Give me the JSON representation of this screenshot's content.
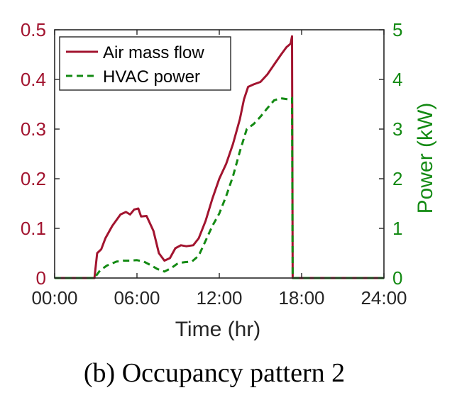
{
  "chart_data": {
    "type": "line",
    "xlabel": "Time (hr)",
    "ylabel_left": "",
    "ylabel_right": "Power (kW)",
    "caption": "(b) Occupancy pattern 2",
    "x_ticks": [
      "00:00",
      "06:00",
      "12:00",
      "18:00",
      "24:00"
    ],
    "xlim": [
      0,
      24
    ],
    "ylim_left": [
      0,
      0.5
    ],
    "ylim_right": [
      0,
      5
    ],
    "left_ticks": [
      "0",
      "0.1",
      "0.2",
      "0.3",
      "0.4",
      "0.5"
    ],
    "right_ticks": [
      "0",
      "1",
      "2",
      "3",
      "4",
      "5"
    ],
    "legend_position": "top-left",
    "grid": false,
    "colors": {
      "air": "#a2142f",
      "hvac": "#138a13",
      "left_axis": "#a2142f",
      "right_axis": "#138a13",
      "frame": "#262626"
    },
    "series": [
      {
        "name": "Air mass flow",
        "axis": "left",
        "style": "solid",
        "x": [
          0,
          2.9,
          3.1,
          3.4,
          3.7,
          4.2,
          4.8,
          5.2,
          5.5,
          5.8,
          6.1,
          6.3,
          6.7,
          7.2,
          7.6,
          8.0,
          8.4,
          8.8,
          9.2,
          9.6,
          10.1,
          10.5,
          11.0,
          11.5,
          12.0,
          12.5,
          13.0,
          13.5,
          13.8,
          14.1,
          14.5,
          15.0,
          15.5,
          16.0,
          16.5,
          16.9,
          17.2,
          17.3,
          17.35,
          24
        ],
        "y": [
          0,
          0,
          0.05,
          0.058,
          0.08,
          0.105,
          0.128,
          0.133,
          0.128,
          0.138,
          0.14,
          0.124,
          0.125,
          0.095,
          0.05,
          0.035,
          0.04,
          0.06,
          0.066,
          0.064,
          0.066,
          0.08,
          0.115,
          0.16,
          0.2,
          0.23,
          0.27,
          0.32,
          0.36,
          0.385,
          0.39,
          0.395,
          0.41,
          0.43,
          0.45,
          0.465,
          0.472,
          0.487,
          0,
          0
        ]
      },
      {
        "name": "HVAC power",
        "axis": "right",
        "style": "dashed",
        "x": [
          0,
          2.9,
          3.3,
          3.8,
          4.5,
          5.0,
          5.5,
          6.0,
          6.5,
          7.0,
          7.5,
          8.0,
          8.5,
          9.0,
          9.5,
          10.0,
          10.5,
          11.0,
          11.5,
          12.0,
          12.5,
          13.0,
          13.5,
          14.0,
          14.5,
          15.0,
          15.5,
          16.0,
          16.5,
          17.0,
          17.3,
          17.35,
          24
        ],
        "y": [
          0,
          0,
          0.15,
          0.25,
          0.33,
          0.35,
          0.35,
          0.36,
          0.33,
          0.26,
          0.18,
          0.13,
          0.2,
          0.3,
          0.32,
          0.33,
          0.45,
          0.75,
          1.05,
          1.3,
          1.65,
          2.05,
          2.55,
          3.0,
          3.1,
          3.25,
          3.42,
          3.58,
          3.62,
          3.6,
          3.63,
          0,
          0
        ]
      }
    ]
  }
}
